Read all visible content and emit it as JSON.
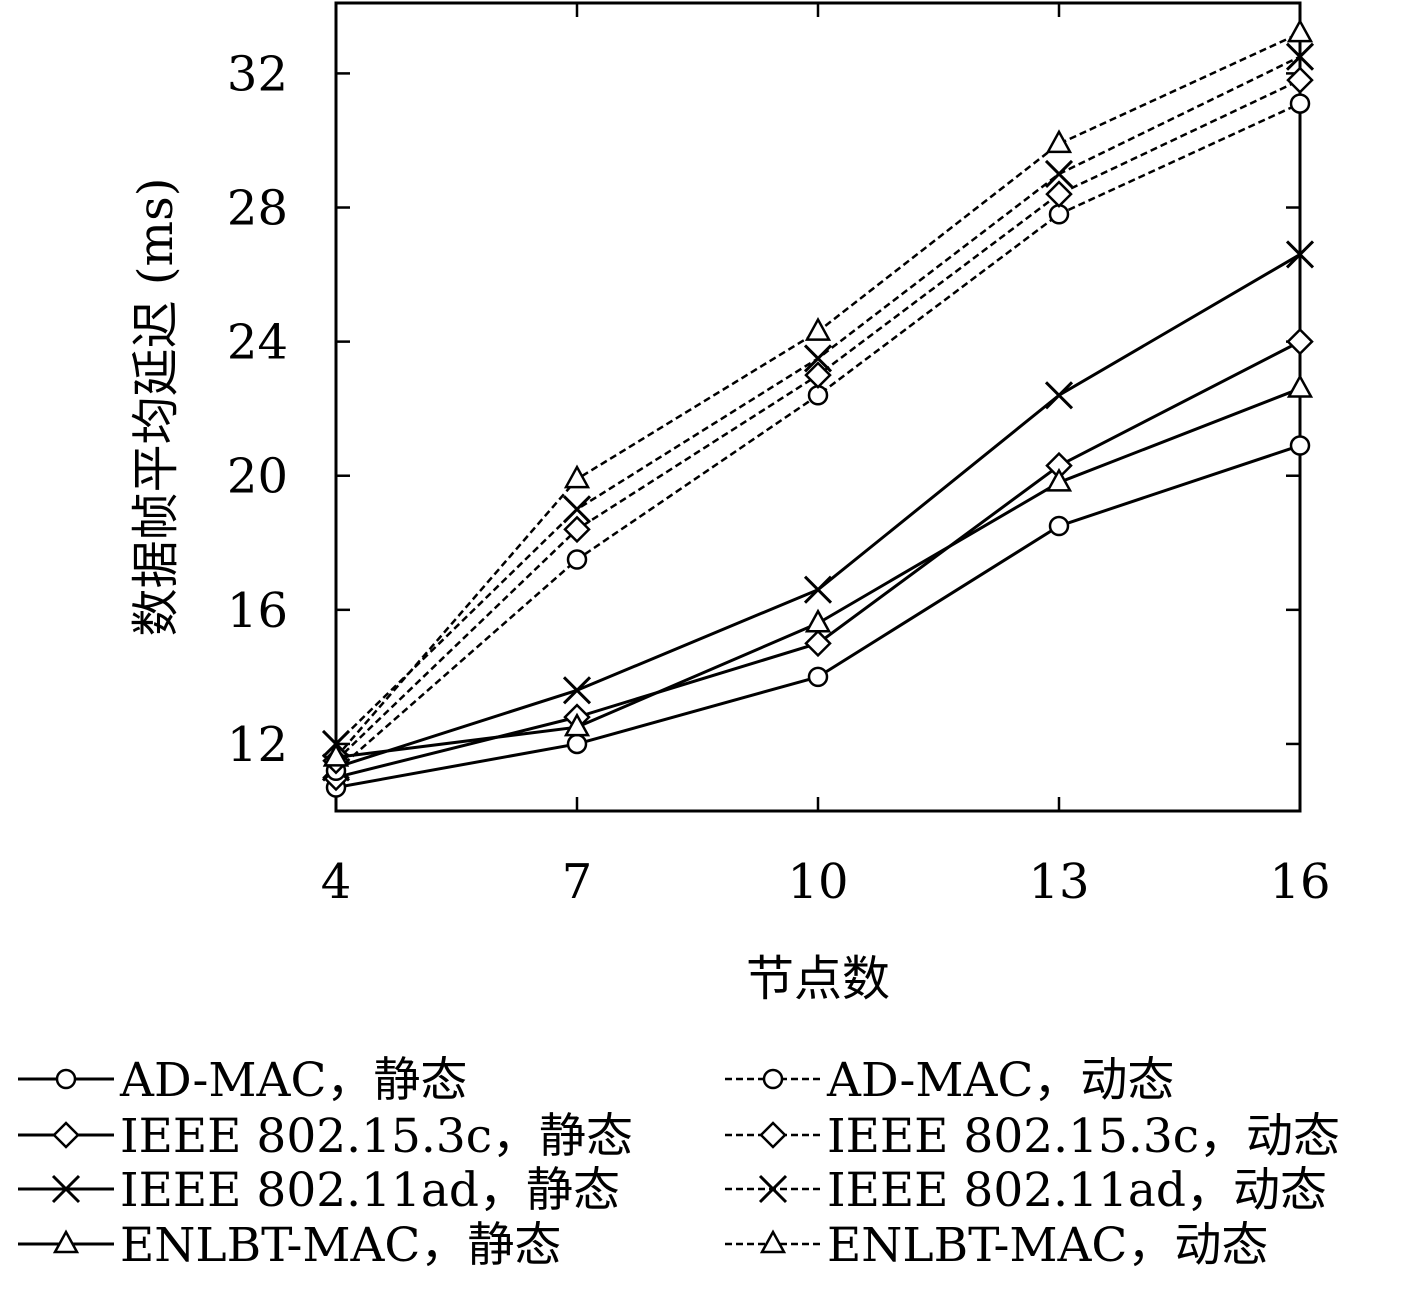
{
  "chart_data": {
    "type": "line",
    "title": "",
    "xlabel": "节点数",
    "ylabel": "数据帧平均延迟 (ms)",
    "x": [
      4,
      7,
      10,
      13,
      16
    ],
    "x_ticks": [
      "4",
      "7",
      "10",
      "13",
      "16"
    ],
    "y_ticks": [
      "12",
      "16",
      "20",
      "24",
      "28",
      "32"
    ],
    "xlim": [
      4,
      16
    ],
    "ylim": [
      10,
      34.1
    ],
    "grid": false,
    "legend_position": "bottom",
    "series": [
      {
        "name": "AD-MAC，静态",
        "marker": "circle",
        "style": "solid",
        "values": [
          10.7,
          12.0,
          14.0,
          18.5,
          20.9
        ]
      },
      {
        "name": "IEEE 802.15.3c，静态",
        "marker": "diamond",
        "style": "solid",
        "values": [
          11.0,
          12.8,
          15.0,
          20.3,
          24.0
        ]
      },
      {
        "name": "IEEE 802.11ad，静态",
        "marker": "cross",
        "style": "solid",
        "values": [
          11.3,
          13.6,
          16.6,
          22.4,
          26.6
        ]
      },
      {
        "name": "ENLBT-MAC，静态",
        "marker": "triangle",
        "style": "solid",
        "values": [
          11.6,
          12.5,
          15.6,
          19.8,
          22.6
        ]
      },
      {
        "name": "AD-MAC，动态",
        "marker": "circle",
        "style": "dashed",
        "values": [
          11.2,
          17.5,
          22.4,
          27.8,
          31.1
        ]
      },
      {
        "name": "IEEE 802.15.3c，动态",
        "marker": "diamond",
        "style": "dashed",
        "values": [
          11.5,
          18.4,
          23.0,
          28.4,
          31.8
        ]
      },
      {
        "name": "IEEE 802.11ad，动态",
        "marker": "cross",
        "style": "dashed",
        "values": [
          12.0,
          19.0,
          23.5,
          29.0,
          32.5
        ]
      },
      {
        "name": "ENLBT-MAC，动态",
        "marker": "triangle",
        "style": "dashed",
        "values": [
          11.6,
          19.9,
          24.3,
          29.9,
          33.2
        ]
      }
    ],
    "colors": {
      "line": "#000000",
      "background": "#ffffff"
    }
  }
}
